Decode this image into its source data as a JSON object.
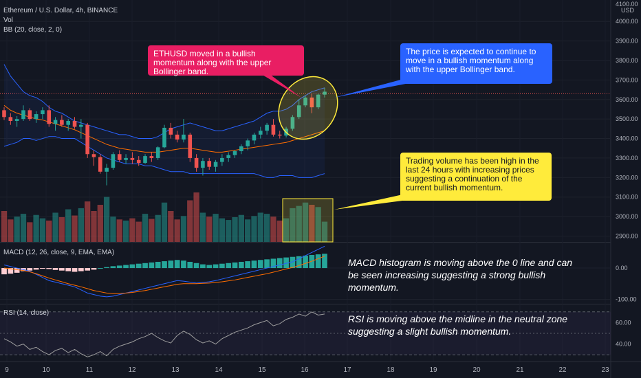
{
  "header": {
    "symbol": "Ethereum / U.S. Dollar, 4h, BINANCE",
    "vol_label": "Vol",
    "bb_label": "BB (20, close, 2, 0)",
    "macd_label": "MACD (12, 26, close, 9, EMA, EMA)",
    "rsi_label": "RSI (14, close)"
  },
  "axis": {
    "price_unit_top": "4100.00",
    "price_unit": "USD"
  },
  "annotations": {
    "red": "ETHUSD moved in a bullish momentum along with the upper Bollinger band.",
    "blue": "The price is expected to continue to move in a bullish momentum along with the upper Bollinger band.",
    "yellow": "Trading volume has been high in the last 24 hours with increasing prices suggesting a continuation of the current bullish momentum.",
    "macd": "MACD histogram is moving above the 0 line and can be seen increasing suggesting a strong bullish momentum.",
    "rsi": "RSI is moving above the midline in the neutral zone suggesting a slight bullish momentum."
  },
  "colors": {
    "up": "#26a69a",
    "down": "#ef5350",
    "bb_band": "#2962ff",
    "bb_basis": "#ff6d00",
    "rsi_line": "#9e9e9e",
    "macd_line": "#2962ff",
    "signal_line": "#ff6d00"
  },
  "chart_data": [
    {
      "type": "candlestick",
      "title": "Ethereum / U.S. Dollar, 4h, BINANCE",
      "x_ticks": [
        "9",
        "10",
        "11",
        "12",
        "13",
        "14",
        "15",
        "16",
        "17",
        "18",
        "19",
        "20",
        "21",
        "22",
        "23"
      ],
      "y_ticks": [
        2900,
        3000,
        3100,
        3200,
        3300,
        3400,
        3500,
        3600,
        3700,
        3800,
        3900,
        4000
      ],
      "ylim": [
        2870,
        4110
      ],
      "current_price_line": 3630,
      "candles": [
        [
          3545,
          3560,
          3495,
          3510
        ],
        [
          3510,
          3530,
          3470,
          3490
        ],
        [
          3490,
          3515,
          3460,
          3500
        ],
        [
          3500,
          3570,
          3490,
          3545
        ],
        [
          3545,
          3555,
          3490,
          3500
        ],
        [
          3500,
          3540,
          3480,
          3525
        ],
        [
          3525,
          3560,
          3500,
          3545
        ],
        [
          3545,
          3570,
          3460,
          3475
        ],
        [
          3475,
          3510,
          3440,
          3495
        ],
        [
          3495,
          3520,
          3460,
          3470
        ],
        [
          3470,
          3500,
          3440,
          3490
        ],
        [
          3490,
          3510,
          3450,
          3460
        ],
        [
          3460,
          3500,
          3400,
          3470
        ],
        [
          3470,
          3480,
          3300,
          3320
        ],
        [
          3320,
          3340,
          3260,
          3305
        ],
        [
          3305,
          3320,
          3220,
          3230
        ],
        [
          3230,
          3270,
          3160,
          3250
        ],
        [
          3250,
          3330,
          3240,
          3320
        ],
        [
          3320,
          3340,
          3280,
          3290
        ],
        [
          3290,
          3320,
          3270,
          3300
        ],
        [
          3300,
          3330,
          3270,
          3290
        ],
        [
          3290,
          3310,
          3260,
          3275
        ],
        [
          3275,
          3320,
          3270,
          3310
        ],
        [
          3310,
          3330,
          3280,
          3300
        ],
        [
          3300,
          3360,
          3290,
          3355
        ],
        [
          3355,
          3470,
          3350,
          3455
        ],
        [
          3455,
          3480,
          3400,
          3420
        ],
        [
          3420,
          3440,
          3380,
          3395
        ],
        [
          3395,
          3500,
          3380,
          3420
        ],
        [
          3420,
          3430,
          3280,
          3300
        ],
        [
          3300,
          3320,
          3230,
          3250
        ],
        [
          3250,
          3300,
          3210,
          3285
        ],
        [
          3285,
          3300,
          3240,
          3255
        ],
        [
          3255,
          3290,
          3230,
          3280
        ],
        [
          3280,
          3320,
          3260,
          3300
        ],
        [
          3300,
          3330,
          3280,
          3315
        ],
        [
          3315,
          3340,
          3300,
          3335
        ],
        [
          3335,
          3370,
          3320,
          3360
        ],
        [
          3360,
          3400,
          3340,
          3390
        ],
        [
          3390,
          3430,
          3370,
          3420
        ],
        [
          3420,
          3460,
          3400,
          3440
        ],
        [
          3440,
          3480,
          3420,
          3470
        ],
        [
          3470,
          3500,
          3410,
          3420
        ],
        [
          3420,
          3440,
          3400,
          3415
        ],
        [
          3415,
          3460,
          3405,
          3450
        ],
        [
          3450,
          3520,
          3440,
          3510
        ],
        [
          3510,
          3600,
          3500,
          3570
        ],
        [
          3570,
          3620,
          3560,
          3610
        ],
        [
          3610,
          3630,
          3530,
          3560
        ],
        [
          3560,
          3630,
          3550,
          3625
        ],
        [
          3625,
          3660,
          3610,
          3640
        ]
      ],
      "bollinger": {
        "upper": [
          3780,
          3720,
          3680,
          3640,
          3620,
          3610,
          3590,
          3560,
          3540,
          3530,
          3510,
          3490,
          3480,
          3470,
          3460,
          3450,
          3440,
          3430,
          3420,
          3420,
          3410,
          3400,
          3400,
          3400,
          3410,
          3430,
          3450,
          3460,
          3470,
          3480,
          3470,
          3460,
          3450,
          3440,
          3440,
          3450,
          3460,
          3470,
          3480,
          3490,
          3510,
          3530,
          3540,
          3540,
          3550,
          3570,
          3600,
          3620,
          3640,
          3650,
          3660
        ],
        "basis": [
          3570,
          3545,
          3530,
          3520,
          3510,
          3500,
          3495,
          3485,
          3475,
          3465,
          3455,
          3445,
          3430,
          3415,
          3400,
          3385,
          3370,
          3360,
          3350,
          3345,
          3340,
          3335,
          3330,
          3330,
          3330,
          3335,
          3340,
          3345,
          3350,
          3350,
          3345,
          3340,
          3335,
          3330,
          3330,
          3335,
          3340,
          3345,
          3350,
          3355,
          3360,
          3365,
          3370,
          3375,
          3380,
          3390,
          3400,
          3410,
          3420,
          3430,
          3440
        ],
        "lower": [
          3360,
          3370,
          3380,
          3400,
          3400,
          3390,
          3400,
          3410,
          3410,
          3400,
          3400,
          3400,
          3380,
          3360,
          3340,
          3320,
          3300,
          3290,
          3280,
          3270,
          3270,
          3270,
          3260,
          3260,
          3250,
          3240,
          3230,
          3230,
          3230,
          3220,
          3220,
          3220,
          3220,
          3220,
          3220,
          3220,
          3220,
          3220,
          3220,
          3220,
          3210,
          3200,
          3200,
          3210,
          3210,
          3210,
          3200,
          3200,
          3200,
          3210,
          3220
        ]
      }
    },
    {
      "type": "bar",
      "title": "Vol",
      "values": [
        55,
        40,
        45,
        50,
        35,
        48,
        42,
        38,
        52,
        44,
        58,
        47,
        60,
        72,
        55,
        66,
        80,
        45,
        40,
        38,
        42,
        36,
        50,
        41,
        48,
        70,
        55,
        40,
        46,
        74,
        88,
        52,
        45,
        50,
        42,
        39,
        44,
        48,
        40,
        46,
        52,
        50,
        45,
        38,
        42,
        60,
        64,
        70,
        66,
        62,
        36
      ]
    },
    {
      "type": "bar",
      "title": "MACD (12, 26, close, 9, EMA, EMA)",
      "y_ticks": [
        0.0,
        -100.0
      ],
      "histogram": [
        -20,
        -18,
        -15,
        -10,
        -8,
        -5,
        -2,
        -3,
        -6,
        -8,
        -10,
        -12,
        -10,
        -8,
        -5,
        0,
        3,
        6,
        8,
        10,
        12,
        14,
        16,
        18,
        20,
        22,
        24,
        26,
        24,
        20,
        16,
        12,
        10,
        12,
        14,
        16,
        18,
        20,
        22,
        24,
        26,
        28,
        30,
        32,
        34,
        36,
        38,
        40,
        42,
        44,
        46
      ],
      "macd": [
        10,
        5,
        0,
        -5,
        -10,
        -20,
        -30,
        -40,
        -45,
        -50,
        -55,
        -60,
        -70,
        -80,
        -85,
        -90,
        -92,
        -90,
        -85,
        -80,
        -75,
        -70,
        -65,
        -60,
        -55,
        -50,
        -45,
        -40,
        -42,
        -45,
        -48,
        -46,
        -44,
        -40,
        -35,
        -30,
        -25,
        -20,
        -15,
        -10,
        -5,
        0,
        5,
        10,
        15,
        20,
        30,
        40,
        50,
        60,
        70
      ],
      "signal": [
        0,
        -2,
        -5,
        -8,
        -12,
        -18,
        -25,
        -32,
        -38,
        -44,
        -50,
        -55,
        -60,
        -66,
        -72,
        -76,
        -80,
        -82,
        -82,
        -80,
        -78,
        -75,
        -72,
        -68,
        -64,
        -60,
        -56,
        -52,
        -50,
        -50,
        -50,
        -49,
        -48,
        -46,
        -44,
        -41,
        -38,
        -34,
        -30,
        -26,
        -22,
        -18,
        -13,
        -8,
        -3,
        2,
        8,
        15,
        22,
        30,
        38
      ]
    },
    {
      "type": "line",
      "title": "RSI (14, close)",
      "y_ticks": [
        60.0,
        40.0
      ],
      "ylim": [
        25,
        75
      ],
      "values": [
        45,
        42,
        38,
        40,
        35,
        37,
        33,
        30,
        34,
        36,
        32,
        35,
        31,
        28,
        30,
        33,
        29,
        35,
        38,
        40,
        42,
        45,
        47,
        50,
        46,
        43,
        41,
        48,
        52,
        49,
        44,
        41,
        43,
        40,
        45,
        48,
        51,
        53,
        55,
        58,
        60,
        62,
        57,
        59,
        63,
        65,
        68,
        66,
        70,
        67,
        68
      ]
    }
  ]
}
